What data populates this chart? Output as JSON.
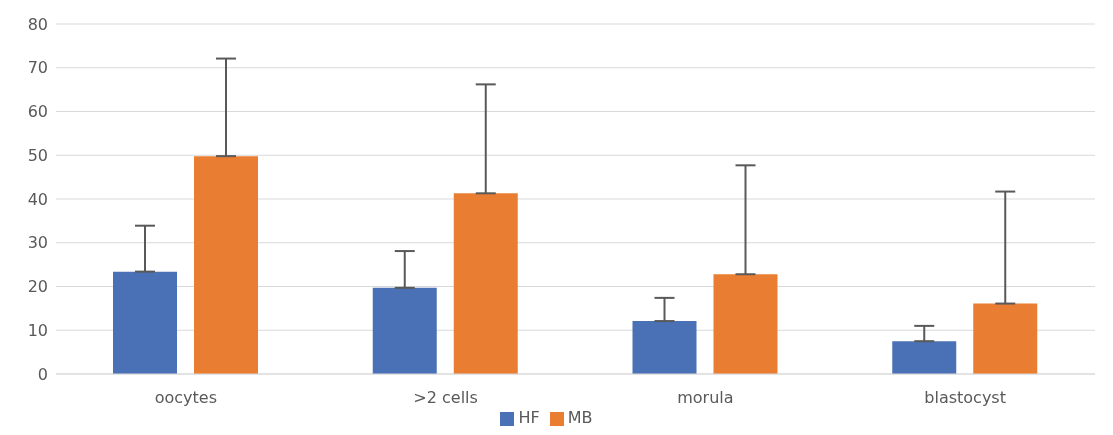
{
  "chart_data": {
    "type": "bar",
    "categories": [
      "oocytes",
      ">2 cells",
      "morula",
      "blastocyst"
    ],
    "series": [
      {
        "name": "HF",
        "color": "#4a71b5",
        "values": [
          23.4,
          19.7,
          12.1,
          7.5
        ],
        "errors": [
          [
            23.4,
            33.9
          ],
          [
            19.7,
            28.1
          ],
          [
            12.1,
            17.4
          ],
          [
            7.5,
            11.0
          ]
        ]
      },
      {
        "name": "MB",
        "color": "#e97d31",
        "values": [
          49.8,
          41.3,
          22.8,
          16.1
        ],
        "errors": [
          [
            49.8,
            72.1
          ],
          [
            41.3,
            66.2
          ],
          [
            22.8,
            47.7
          ],
          [
            16.1,
            41.7
          ]
        ]
      }
    ],
    "ylim": [
      0,
      80
    ],
    "yticks": [
      0,
      10,
      20,
      30,
      40,
      50,
      60,
      70,
      80
    ],
    "grid": "y",
    "legend": "bottom"
  }
}
